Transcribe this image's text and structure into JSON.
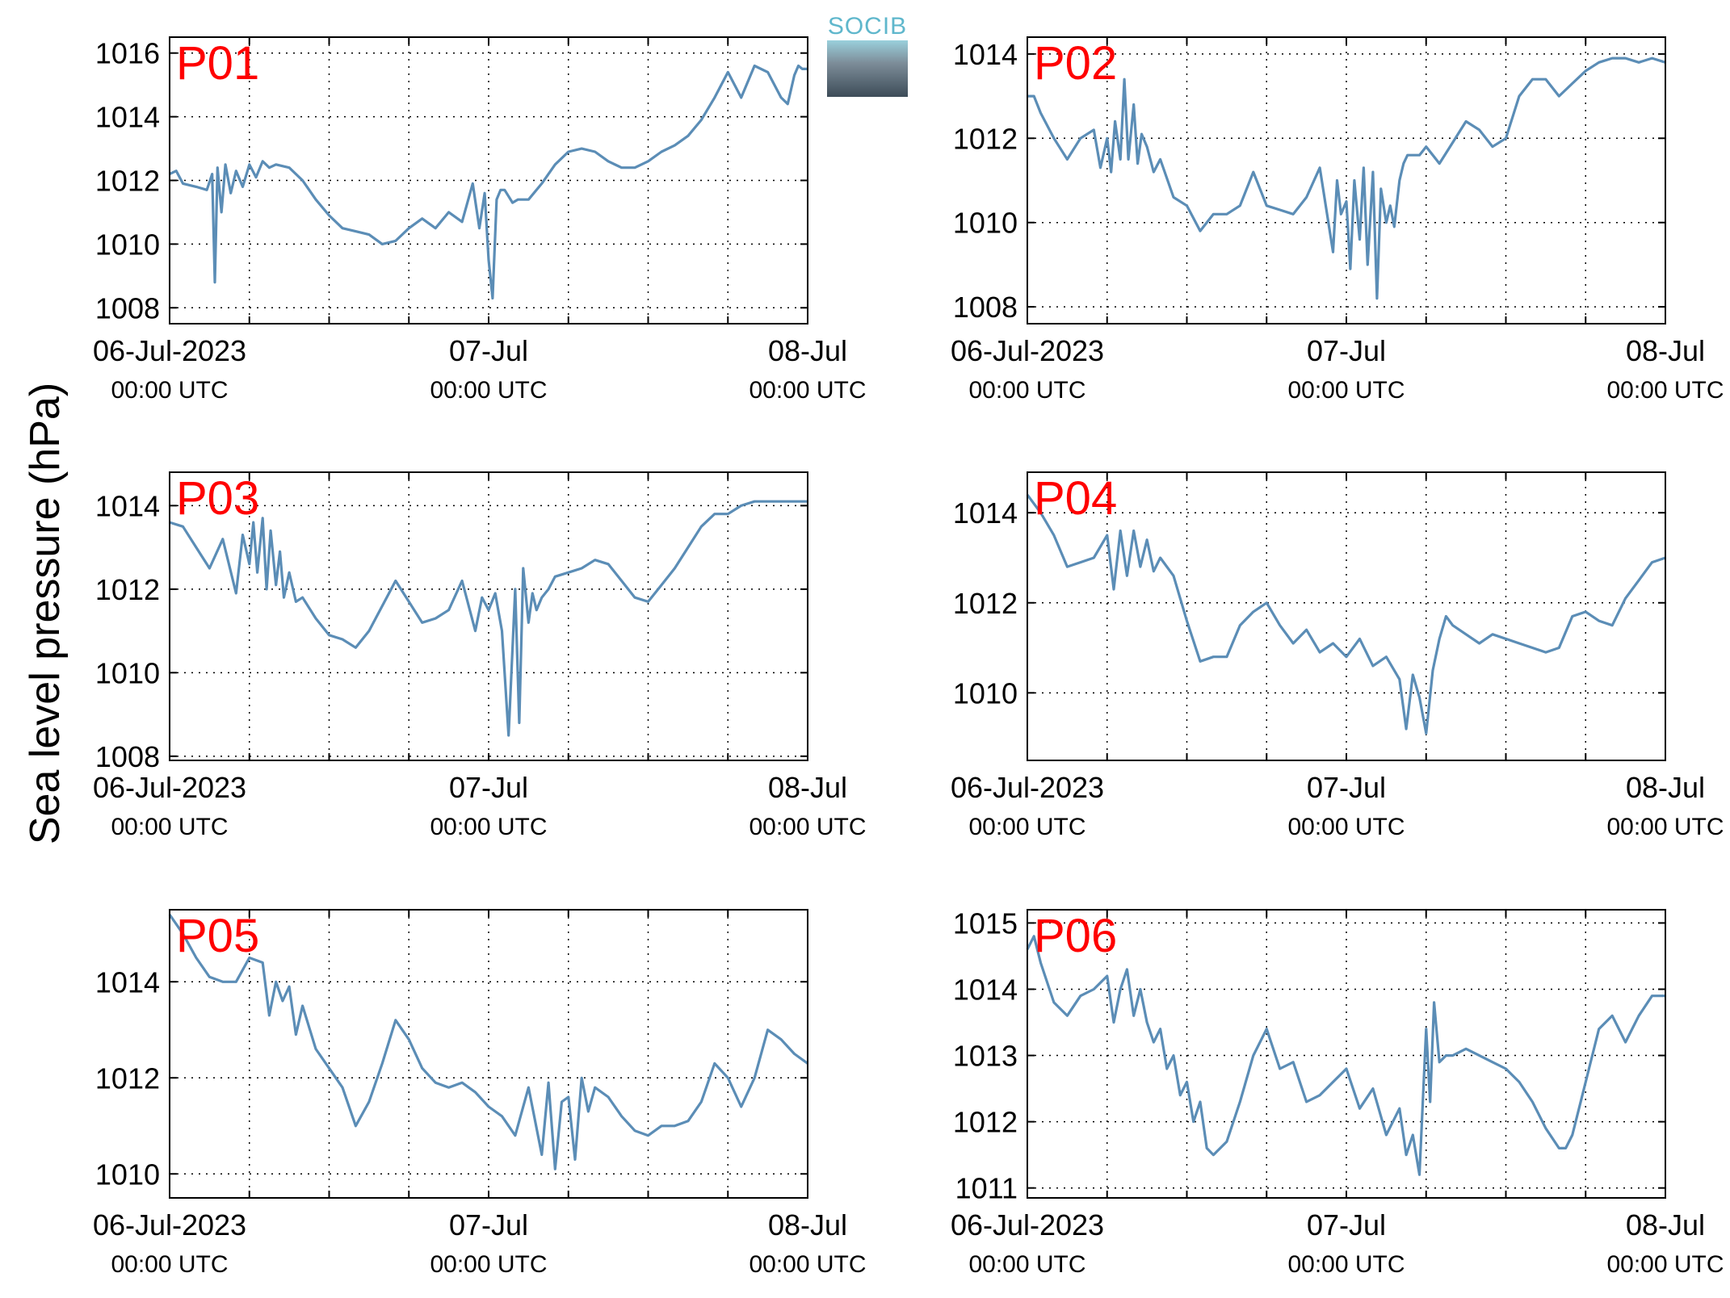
{
  "figure": {
    "ylabel": "Sea level pressure (hPa)",
    "logo_text": "SOCIB",
    "colors": {
      "line": "#5b8db6",
      "panel_label": "#ff0000",
      "grid": "#000000"
    }
  },
  "chart_data": [
    {
      "type": "line",
      "name": "P01",
      "panel_label": "P01",
      "xlim": [
        0,
        48
      ],
      "ylim": [
        1007.5,
        1016.5
      ],
      "yticks": [
        1008,
        1010,
        1012,
        1014,
        1016
      ],
      "xticks": [
        0,
        24,
        48
      ],
      "xticklabels": [
        [
          "06-Jul-2023",
          "00:00 UTC"
        ],
        [
          "07-Jul",
          "00:00 UTC"
        ],
        [
          "08-Jul",
          "00:00 UTC"
        ]
      ],
      "x": [
        0,
        0.5,
        1,
        2,
        2.8,
        3.2,
        3.4,
        3.6,
        3.9,
        4.2,
        4.6,
        5,
        5.5,
        6,
        6.5,
        7,
        7.5,
        8,
        9,
        10,
        11,
        12,
        13,
        14,
        15,
        16,
        17,
        18,
        19,
        20,
        21,
        22,
        22.8,
        23.3,
        23.7,
        24,
        24.3,
        24.6,
        24.9,
        25.2,
        25.5,
        25.8,
        26.2,
        27,
        28,
        29,
        30,
        31,
        32,
        33,
        34,
        35,
        36,
        37,
        38,
        39,
        40,
        41,
        42,
        43,
        44,
        45,
        46,
        46.5,
        47,
        47.3,
        47.6,
        48
      ],
      "y": [
        1012.2,
        1012.3,
        1011.9,
        1011.8,
        1011.7,
        1012.2,
        1008.8,
        1012.4,
        1011.0,
        1012.5,
        1011.6,
        1012.3,
        1011.8,
        1012.5,
        1012.1,
        1012.6,
        1012.4,
        1012.5,
        1012.4,
        1012.0,
        1011.4,
        1010.9,
        1010.5,
        1010.4,
        1010.3,
        1010.0,
        1010.1,
        1010.5,
        1010.8,
        1010.5,
        1011.0,
        1010.7,
        1011.9,
        1010.5,
        1011.6,
        1009.5,
        1008.3,
        1011.4,
        1011.7,
        1011.7,
        1011.5,
        1011.3,
        1011.4,
        1011.4,
        1011.9,
        1012.5,
        1012.9,
        1013.0,
        1012.9,
        1012.6,
        1012.4,
        1012.4,
        1012.6,
        1012.9,
        1013.1,
        1013.4,
        1013.9,
        1014.6,
        1015.4,
        1014.6,
        1015.6,
        1015.4,
        1014.6,
        1014.4,
        1015.3,
        1015.6,
        1015.5,
        1015.5
      ]
    },
    {
      "type": "line",
      "name": "P02",
      "panel_label": "P02",
      "xlim": [
        0,
        48
      ],
      "ylim": [
        1007.6,
        1014.4
      ],
      "yticks": [
        1008,
        1010,
        1012,
        1014
      ],
      "xticks": [
        0,
        24,
        48
      ],
      "xticklabels": [
        [
          "06-Jul-2023",
          "00:00 UTC"
        ],
        [
          "07-Jul",
          "00:00 UTC"
        ],
        [
          "08-Jul",
          "00:00 UTC"
        ]
      ],
      "x": [
        0,
        0.5,
        1,
        2,
        3,
        4,
        5,
        5.5,
        6,
        6.3,
        6.6,
        7,
        7.3,
        7.6,
        8,
        8.3,
        8.6,
        9,
        9.5,
        10,
        11,
        12,
        13,
        14,
        15,
        16,
        17,
        18,
        19,
        20,
        21,
        22,
        23,
        23.3,
        23.6,
        24,
        24.3,
        24.6,
        25,
        25.3,
        25.6,
        26,
        26.3,
        26.6,
        27,
        27.3,
        27.6,
        28,
        28.3,
        28.6,
        29,
        29.5,
        30,
        31,
        32,
        33,
        34,
        35,
        36,
        37,
        38,
        39,
        40,
        41,
        42,
        43,
        44,
        45,
        46,
        47,
        48
      ],
      "y": [
        1013.0,
        1013.0,
        1012.6,
        1012.0,
        1011.5,
        1012.0,
        1012.2,
        1011.3,
        1012.0,
        1011.2,
        1012.4,
        1011.5,
        1013.4,
        1011.5,
        1012.8,
        1011.4,
        1012.1,
        1011.8,
        1011.2,
        1011.5,
        1010.6,
        1010.4,
        1009.8,
        1010.2,
        1010.2,
        1010.4,
        1011.2,
        1010.4,
        1010.3,
        1010.2,
        1010.6,
        1011.3,
        1009.3,
        1011.0,
        1010.2,
        1010.5,
        1008.9,
        1011.0,
        1009.6,
        1011.3,
        1009.0,
        1011.2,
        1008.2,
        1010.8,
        1010.0,
        1010.4,
        1009.9,
        1011.0,
        1011.4,
        1011.6,
        1011.6,
        1011.6,
        1011.8,
        1011.4,
        1011.9,
        1012.4,
        1012.2,
        1011.8,
        1012.0,
        1013.0,
        1013.4,
        1013.4,
        1013.0,
        1013.3,
        1013.6,
        1013.8,
        1013.9,
        1013.9,
        1013.8,
        1013.9,
        1013.8
      ]
    },
    {
      "type": "line",
      "name": "P03",
      "panel_label": "P03",
      "xlim": [
        0,
        48
      ],
      "ylim": [
        1007.9,
        1014.8
      ],
      "yticks": [
        1008,
        1010,
        1012,
        1014
      ],
      "xticks": [
        0,
        24,
        48
      ],
      "xticklabels": [
        [
          "06-Jul-2023",
          "00:00 UTC"
        ],
        [
          "07-Jul",
          "00:00 UTC"
        ],
        [
          "08-Jul",
          "00:00 UTC"
        ]
      ],
      "x": [
        0,
        1,
        2,
        3,
        4,
        5,
        5.5,
        6,
        6.3,
        6.6,
        7,
        7.3,
        7.6,
        8,
        8.3,
        8.6,
        9,
        9.5,
        10,
        11,
        12,
        13,
        14,
        15,
        16,
        17,
        18,
        19,
        20,
        21,
        22,
        23,
        23.5,
        24,
        24.5,
        25,
        25.5,
        26,
        26.3,
        26.6,
        27,
        27.3,
        27.6,
        28,
        28.5,
        29,
        30,
        31,
        32,
        33,
        34,
        35,
        36,
        37,
        38,
        39,
        40,
        41,
        42,
        43,
        44,
        45,
        46,
        47,
        48
      ],
      "y": [
        1013.6,
        1013.5,
        1013.0,
        1012.5,
        1013.2,
        1011.9,
        1013.3,
        1012.6,
        1013.6,
        1012.4,
        1013.7,
        1012.0,
        1013.4,
        1012.1,
        1012.9,
        1011.8,
        1012.4,
        1011.7,
        1011.8,
        1011.3,
        1010.9,
        1010.8,
        1010.6,
        1011.0,
        1011.6,
        1012.2,
        1011.7,
        1011.2,
        1011.3,
        1011.5,
        1012.2,
        1011.0,
        1011.8,
        1011.5,
        1011.9,
        1011.0,
        1008.5,
        1012.0,
        1008.8,
        1012.5,
        1011.2,
        1011.9,
        1011.5,
        1011.8,
        1012.0,
        1012.3,
        1012.4,
        1012.5,
        1012.7,
        1012.6,
        1012.2,
        1011.8,
        1011.7,
        1012.1,
        1012.5,
        1013.0,
        1013.5,
        1013.8,
        1013.8,
        1014.0,
        1014.1,
        1014.1,
        1014.1,
        1014.1,
        1014.1
      ]
    },
    {
      "type": "line",
      "name": "P04",
      "panel_label": "P04",
      "xlim": [
        0,
        48
      ],
      "ylim": [
        1008.5,
        1014.9
      ],
      "yticks": [
        1010,
        1012,
        1014
      ],
      "xticks": [
        0,
        24,
        48
      ],
      "xticklabels": [
        [
          "06-Jul-2023",
          "00:00 UTC"
        ],
        [
          "07-Jul",
          "00:00 UTC"
        ],
        [
          "08-Jul",
          "00:00 UTC"
        ]
      ],
      "x": [
        0,
        1,
        2,
        3,
        4,
        5,
        6,
        6.5,
        7,
        7.5,
        8,
        8.5,
        9,
        9.5,
        10,
        11,
        12,
        13,
        14,
        15,
        16,
        17,
        18,
        19,
        20,
        21,
        22,
        23,
        24,
        25,
        26,
        27,
        28,
        28.5,
        29,
        29.5,
        30,
        30.5,
        31,
        31.5,
        32,
        33,
        34,
        35,
        36,
        37,
        38,
        39,
        40,
        41,
        42,
        43,
        44,
        45,
        46,
        47,
        48
      ],
      "y": [
        1014.4,
        1014.0,
        1013.5,
        1012.8,
        1012.9,
        1013.0,
        1013.5,
        1012.3,
        1013.6,
        1012.6,
        1013.6,
        1012.8,
        1013.4,
        1012.7,
        1013.0,
        1012.6,
        1011.6,
        1010.7,
        1010.8,
        1010.8,
        1011.5,
        1011.8,
        1012.0,
        1011.5,
        1011.1,
        1011.4,
        1010.9,
        1011.1,
        1010.8,
        1011.2,
        1010.6,
        1010.8,
        1010.3,
        1009.2,
        1010.4,
        1009.9,
        1009.1,
        1010.5,
        1011.2,
        1011.7,
        1011.5,
        1011.3,
        1011.1,
        1011.3,
        1011.2,
        1011.1,
        1011.0,
        1010.9,
        1011.0,
        1011.7,
        1011.8,
        1011.6,
        1011.5,
        1012.1,
        1012.5,
        1012.9,
        1013.0
      ]
    },
    {
      "type": "line",
      "name": "P05",
      "panel_label": "P05",
      "xlim": [
        0,
        48
      ],
      "ylim": [
        1009.5,
        1015.5
      ],
      "yticks": [
        1010,
        1012,
        1014
      ],
      "xticks": [
        0,
        24,
        48
      ],
      "xticklabels": [
        [
          "06-Jul-2023",
          "00:00 UTC"
        ],
        [
          "07-Jul",
          "00:00 UTC"
        ],
        [
          "08-Jul",
          "00:00 UTC"
        ]
      ],
      "x": [
        0,
        1,
        2,
        3,
        4,
        5,
        6,
        7,
        7.5,
        8,
        8.5,
        9,
        9.5,
        10,
        11,
        12,
        13,
        14,
        15,
        16,
        17,
        18,
        19,
        20,
        21,
        22,
        23,
        24,
        25,
        26,
        27,
        28,
        28.5,
        29,
        29.5,
        30,
        30.5,
        31,
        31.5,
        32,
        33,
        34,
        35,
        36,
        37,
        38,
        39,
        40,
        41,
        42,
        43,
        44,
        45,
        46,
        47,
        48
      ],
      "y": [
        1015.4,
        1015.0,
        1014.5,
        1014.1,
        1014.0,
        1014.0,
        1014.5,
        1014.4,
        1013.3,
        1014.0,
        1013.6,
        1013.9,
        1012.9,
        1013.5,
        1012.6,
        1012.2,
        1011.8,
        1011.0,
        1011.5,
        1012.3,
        1013.2,
        1012.8,
        1012.2,
        1011.9,
        1011.8,
        1011.9,
        1011.7,
        1011.4,
        1011.2,
        1010.8,
        1011.8,
        1010.4,
        1011.9,
        1010.1,
        1011.5,
        1011.6,
        1010.3,
        1012.0,
        1011.3,
        1011.8,
        1011.6,
        1011.2,
        1010.9,
        1010.8,
        1011.0,
        1011.0,
        1011.1,
        1011.5,
        1012.3,
        1012.0,
        1011.4,
        1012.0,
        1013.0,
        1012.8,
        1012.5,
        1012.3
      ]
    },
    {
      "type": "line",
      "name": "P06",
      "panel_label": "P06",
      "xlim": [
        0,
        48
      ],
      "ylim": [
        1010.85,
        1015.2
      ],
      "yticks": [
        1011,
        1012,
        1013,
        1014,
        1015
      ],
      "xticks": [
        0,
        24,
        48
      ],
      "xticklabels": [
        [
          "06-Jul-2023",
          "00:00 UTC"
        ],
        [
          "07-Jul",
          "00:00 UTC"
        ],
        [
          "08-Jul",
          "00:00 UTC"
        ]
      ],
      "x": [
        0,
        0.5,
        1,
        2,
        3,
        4,
        5,
        6,
        6.5,
        7,
        7.5,
        8,
        8.5,
        9,
        9.5,
        10,
        10.5,
        11,
        11.5,
        12,
        12.5,
        13,
        13.5,
        14,
        15,
        16,
        17,
        18,
        19,
        20,
        21,
        22,
        23,
        24,
        25,
        26,
        27,
        28,
        28.5,
        29,
        29.5,
        30,
        30.3,
        30.6,
        31,
        31.5,
        32,
        33,
        34,
        35,
        36,
        37,
        38,
        39,
        40,
        40.5,
        41,
        42,
        43,
        44,
        45,
        46,
        47,
        48
      ],
      "y": [
        1014.6,
        1014.8,
        1014.4,
        1013.8,
        1013.6,
        1013.9,
        1014.0,
        1014.2,
        1013.5,
        1014.0,
        1014.3,
        1013.6,
        1014.0,
        1013.5,
        1013.2,
        1013.4,
        1012.8,
        1013.0,
        1012.4,
        1012.6,
        1012.0,
        1012.3,
        1011.6,
        1011.5,
        1011.7,
        1012.3,
        1013.0,
        1013.4,
        1012.8,
        1012.9,
        1012.3,
        1012.4,
        1012.6,
        1012.8,
        1012.2,
        1012.5,
        1011.8,
        1012.2,
        1011.5,
        1011.8,
        1011.2,
        1013.4,
        1012.3,
        1013.8,
        1012.9,
        1013.0,
        1013.0,
        1013.1,
        1013.0,
        1012.9,
        1012.8,
        1012.6,
        1012.3,
        1011.9,
        1011.6,
        1011.6,
        1011.8,
        1012.6,
        1013.4,
        1013.6,
        1013.2,
        1013.6,
        1013.9,
        1013.9
      ]
    }
  ]
}
